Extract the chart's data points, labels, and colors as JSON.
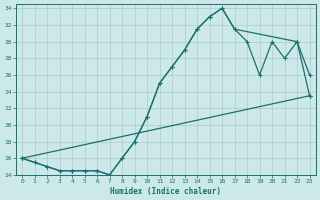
{
  "xlabel": "Humidex (Indice chaleur)",
  "bg_color": "#cce8e8",
  "grid_color": "#aacccc",
  "line_color": "#1a7070",
  "xlim": [
    -0.5,
    23.5
  ],
  "ylim": [
    14,
    34.5
  ],
  "xticks": [
    0,
    1,
    2,
    3,
    4,
    5,
    6,
    7,
    8,
    9,
    10,
    11,
    12,
    13,
    14,
    15,
    16,
    17,
    18,
    19,
    20,
    21,
    22,
    23
  ],
  "yticks": [
    14,
    16,
    18,
    20,
    22,
    24,
    26,
    28,
    30,
    32,
    34
  ],
  "line1_x": [
    0,
    1,
    2,
    3,
    4,
    5,
    6,
    7,
    8,
    9,
    10,
    11,
    12,
    13,
    14,
    15,
    16,
    17,
    22,
    23
  ],
  "line1_y": [
    16,
    15.5,
    15,
    14.5,
    14.5,
    14.5,
    14.5,
    14,
    16,
    18,
    21,
    25,
    27,
    29,
    31.5,
    33,
    34,
    31.5,
    30,
    26
  ],
  "line2_x": [
    0,
    23
  ],
  "line2_y": [
    16,
    23.5
  ],
  "line3_x": [
    0,
    1,
    2,
    3,
    4,
    5,
    6,
    7,
    8,
    9,
    10,
    11,
    12,
    13,
    14,
    15,
    16,
    17,
    18,
    19,
    20,
    21,
    22,
    23
  ],
  "line3_y": [
    16,
    15.5,
    15,
    14.5,
    14.5,
    14.5,
    14.5,
    14,
    16,
    18,
    21,
    25,
    27,
    29,
    31.5,
    33,
    34,
    31.5,
    30,
    26,
    30,
    28,
    30,
    23.5
  ]
}
